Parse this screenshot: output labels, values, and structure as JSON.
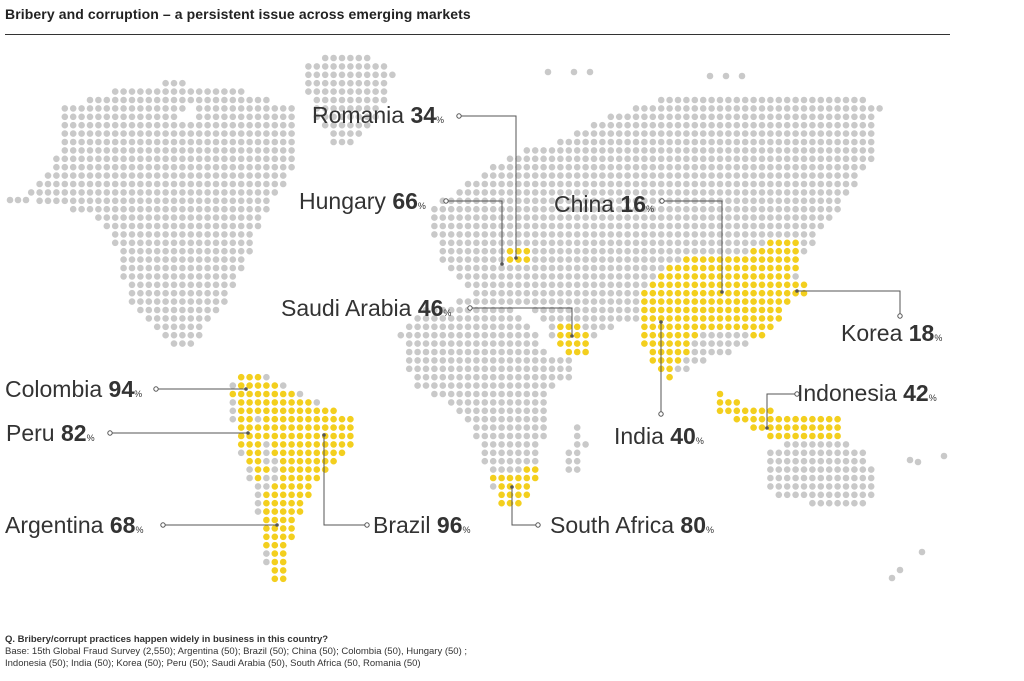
{
  "title": "Bribery and corruption – a persistent issue across emerging markets",
  "colors": {
    "highlight": "#f3cf1e",
    "base_dot": "#c9c9c9",
    "line": "#555555",
    "text": "#333333"
  },
  "pct_symbol": "%",
  "countries": [
    {
      "id": "romania",
      "name": "Romania",
      "value": "34"
    },
    {
      "id": "hungary",
      "name": "Hungary",
      "value": "66"
    },
    {
      "id": "china",
      "name": "China",
      "value": "16"
    },
    {
      "id": "saudi-arabia",
      "name": "Saudi Arabia",
      "value": "46"
    },
    {
      "id": "korea",
      "name": "Korea",
      "value": "18"
    },
    {
      "id": "colombia",
      "name": "Colombia",
      "value": "94"
    },
    {
      "id": "indonesia",
      "name": "Indonesia",
      "value": "42"
    },
    {
      "id": "peru",
      "name": "Peru",
      "value": "82"
    },
    {
      "id": "india",
      "name": "India",
      "value": "40"
    },
    {
      "id": "argentina",
      "name": "Argentina",
      "value": "68"
    },
    {
      "id": "brazil",
      "name": "Brazil",
      "value": "96"
    },
    {
      "id": "south-africa",
      "name": "South Africa",
      "value": "80"
    }
  ],
  "footnote": {
    "question": "Q. Bribery/corrupt practices happen widely in business in this country?",
    "base_line1": "Base: 15th Global Fraud Survey (2,550); Argentina (50); Brazil (50); China (50); Colombia (50), Hungary (50) ;",
    "base_line2": "Indonesia (50); India (50); Korea (50); Peru (50); Saudi Arabia (50), South Africa (50, Romania (50)"
  }
}
